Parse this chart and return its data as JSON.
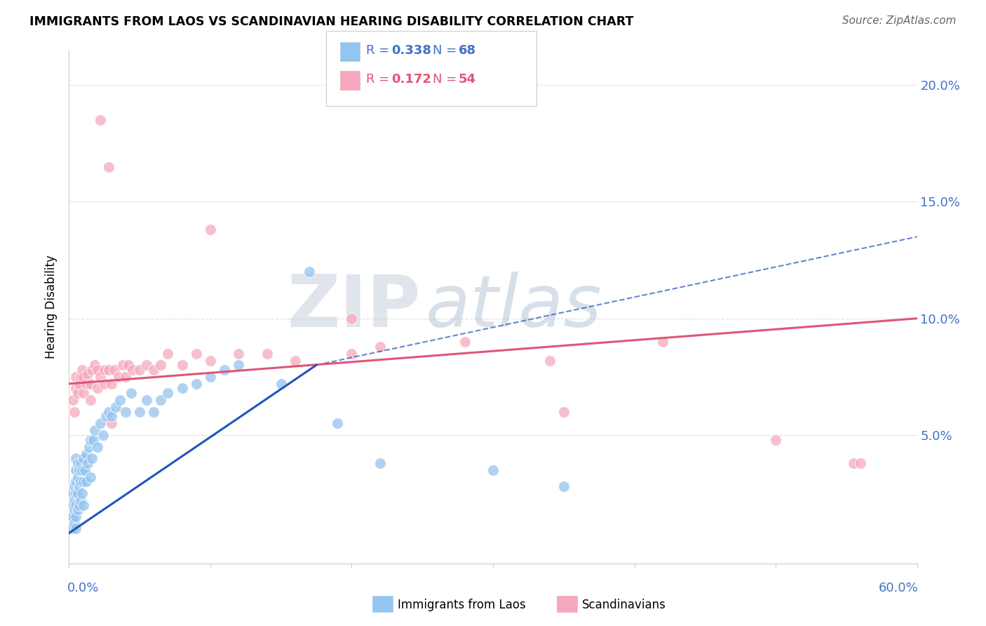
{
  "title": "IMMIGRANTS FROM LAOS VS SCANDINAVIAN HEARING DISABILITY CORRELATION CHART",
  "source": "Source: ZipAtlas.com",
  "ylabel": "Hearing Disability",
  "xlim": [
    0.0,
    0.6
  ],
  "ylim": [
    -0.005,
    0.215
  ],
  "yticks": [
    0.0,
    0.05,
    0.1,
    0.15,
    0.2
  ],
  "ytick_labels": [
    "",
    "5.0%",
    "10.0%",
    "15.0%",
    "20.0%"
  ],
  "xtick_vals": [
    0.0,
    0.1,
    0.2,
    0.3,
    0.4,
    0.5,
    0.6
  ],
  "color_blue": "#94C4F0",
  "color_pink": "#F5A8BC",
  "trendline_blue": "#2255BB",
  "trendline_pink": "#E05575",
  "label_color": "#4472C4",
  "legend_r1": "0.338",
  "legend_n1": "68",
  "legend_r2": "0.172",
  "legend_n2": "54",
  "blue_x": [
    0.002,
    0.002,
    0.003,
    0.003,
    0.003,
    0.003,
    0.004,
    0.004,
    0.004,
    0.004,
    0.005,
    0.005,
    0.005,
    0.005,
    0.005,
    0.005,
    0.005,
    0.006,
    0.006,
    0.006,
    0.006,
    0.007,
    0.007,
    0.007,
    0.008,
    0.008,
    0.008,
    0.009,
    0.009,
    0.01,
    0.01,
    0.01,
    0.011,
    0.012,
    0.012,
    0.013,
    0.014,
    0.015,
    0.015,
    0.016,
    0.017,
    0.018,
    0.02,
    0.022,
    0.024,
    0.026,
    0.028,
    0.03,
    0.033,
    0.036,
    0.04,
    0.044,
    0.05,
    0.055,
    0.06,
    0.065,
    0.07,
    0.08,
    0.09,
    0.1,
    0.11,
    0.12,
    0.15,
    0.17,
    0.19,
    0.22,
    0.3,
    0.35
  ],
  "blue_y": [
    0.01,
    0.015,
    0.01,
    0.015,
    0.02,
    0.025,
    0.012,
    0.018,
    0.022,
    0.028,
    0.01,
    0.015,
    0.02,
    0.025,
    0.03,
    0.035,
    0.04,
    0.018,
    0.025,
    0.032,
    0.038,
    0.02,
    0.028,
    0.035,
    0.022,
    0.03,
    0.038,
    0.025,
    0.035,
    0.02,
    0.03,
    0.04,
    0.035,
    0.03,
    0.042,
    0.038,
    0.045,
    0.032,
    0.048,
    0.04,
    0.048,
    0.052,
    0.045,
    0.055,
    0.05,
    0.058,
    0.06,
    0.058,
    0.062,
    0.065,
    0.06,
    0.068,
    0.06,
    0.065,
    0.06,
    0.065,
    0.068,
    0.07,
    0.072,
    0.075,
    0.078,
    0.08,
    0.072,
    0.12,
    0.055,
    0.038,
    0.035,
    0.028
  ],
  "pink_x": [
    0.003,
    0.004,
    0.005,
    0.005,
    0.006,
    0.007,
    0.008,
    0.009,
    0.01,
    0.01,
    0.012,
    0.013,
    0.015,
    0.015,
    0.016,
    0.018,
    0.02,
    0.02,
    0.022,
    0.025,
    0.025,
    0.028,
    0.03,
    0.032,
    0.035,
    0.038,
    0.04,
    0.042,
    0.045,
    0.05,
    0.055,
    0.06,
    0.065,
    0.07,
    0.08,
    0.09,
    0.1,
    0.12,
    0.14,
    0.16,
    0.2,
    0.22,
    0.28,
    0.34,
    0.42,
    0.5,
    0.555,
    0.022,
    0.028,
    0.1,
    0.2,
    0.35,
    0.56,
    0.03
  ],
  "pink_y": [
    0.065,
    0.06,
    0.07,
    0.075,
    0.068,
    0.072,
    0.075,
    0.078,
    0.068,
    0.075,
    0.072,
    0.076,
    0.065,
    0.072,
    0.078,
    0.08,
    0.07,
    0.078,
    0.075,
    0.072,
    0.078,
    0.078,
    0.072,
    0.078,
    0.075,
    0.08,
    0.075,
    0.08,
    0.078,
    0.078,
    0.08,
    0.078,
    0.08,
    0.085,
    0.08,
    0.085,
    0.082,
    0.085,
    0.085,
    0.082,
    0.085,
    0.088,
    0.09,
    0.082,
    0.09,
    0.048,
    0.038,
    0.185,
    0.165,
    0.138,
    0.1,
    0.06,
    0.038,
    0.055
  ],
  "blue_trend_x0": 0.0,
  "blue_trend_x_solid_end": 0.175,
  "blue_trend_x_end": 0.6,
  "blue_trend_y0": 0.008,
  "blue_trend_y_solid_end": 0.08,
  "blue_trend_y_end": 0.135,
  "pink_trend_x0": 0.0,
  "pink_trend_x_end": 0.6,
  "pink_trend_y0": 0.072,
  "pink_trend_y_end": 0.1
}
